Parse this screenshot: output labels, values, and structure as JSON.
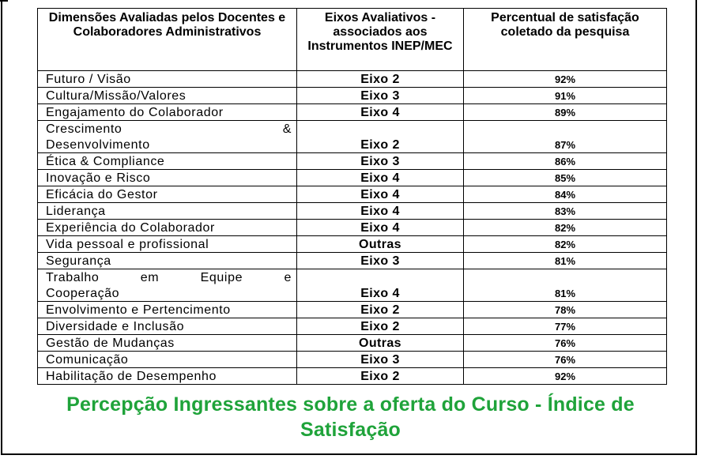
{
  "table": {
    "headers": [
      "Dimensões Avaliadas pelos Docentes e Colaboradores Administrativos",
      "Eixos Avaliativos - associados aos Instrumentos INEP/MEC",
      "Percentual de satisfação coletado da pesquisa"
    ],
    "rows": [
      {
        "dimension": "Futuro / Visão",
        "eixo": "Eixo 2",
        "percent": "92%"
      },
      {
        "dimension": "Cultura/Missão/Valores",
        "eixo": "Eixo 3",
        "percent": "91%"
      },
      {
        "dimension": "Engajamento do Colaborador",
        "eixo": "Eixo 4",
        "percent": "89%"
      },
      {
        "dimension": "Crescimento & Desenvolvimento",
        "eixo": "Eixo 2",
        "percent": "87%"
      },
      {
        "dimension": "Ética & Compliance",
        "eixo": "Eixo 3",
        "percent": "86%"
      },
      {
        "dimension": "Inovação e Risco",
        "eixo": "Eixo 4",
        "percent": "85%"
      },
      {
        "dimension": "Eficácia do Gestor",
        "eixo": "Eixo 4",
        "percent": "84%"
      },
      {
        "dimension": "Liderança",
        "eixo": "Eixo 4",
        "percent": "83%"
      },
      {
        "dimension": "Experiência do Colaborador",
        "eixo": "Eixo 4",
        "percent": "82%"
      },
      {
        "dimension": "Vida pessoal e profissional",
        "eixo": "Outras",
        "percent": "82%"
      },
      {
        "dimension": "Segurança",
        "eixo": "Eixo 3",
        "percent": "81%"
      },
      {
        "dimension": "Trabalho em Equipe e Cooperação",
        "eixo": "Eixo 4",
        "percent": "81%"
      },
      {
        "dimension": "Envolvimento e Pertencimento",
        "eixo": "Eixo 2",
        "percent": "78%"
      },
      {
        "dimension": "Diversidade e Inclusão",
        "eixo": "Eixo 2",
        "percent": "77%"
      },
      {
        "dimension": "Gestão de Mudanças",
        "eixo": "Outras",
        "percent": "76%"
      },
      {
        "dimension": "Comunicação",
        "eixo": "Eixo 3",
        "percent": "76%"
      },
      {
        "dimension": "Habilitação de Desempenho",
        "eixo": "Eixo 2",
        "percent": "92%"
      }
    ]
  },
  "heading": "Percepção Ingressantes  sobre a oferta do Curso - Índice de Satisfação",
  "colors": {
    "heading": "#1fa33a",
    "border": "#000000"
  }
}
